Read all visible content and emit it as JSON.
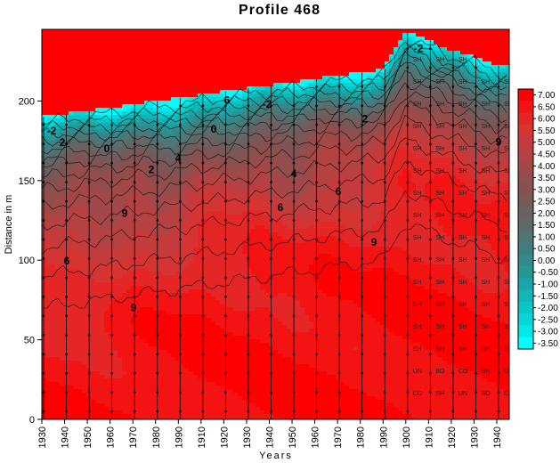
{
  "chart_data": {
    "type": "heatmap",
    "subtype": "filled-contour",
    "title": "Profile  468",
    "xlabel": "Years",
    "ylabel": "Distance in m",
    "xlim": [
      1930,
      1947
    ],
    "ylim": [
      0,
      245
    ],
    "x_ticks": [
      "1930",
      "1940",
      "1950",
      "1960",
      "1970",
      "1980",
      "1990",
      "1910",
      "1920",
      "1930",
      "1940",
      "1950",
      "1960",
      "1970",
      "1980",
      "1990",
      "1900",
      "1910",
      "1920",
      "1930",
      "1940"
    ],
    "y_ticks": [
      0,
      50,
      100,
      150,
      200
    ],
    "colorbar": {
      "levels": [
        7.0,
        6.5,
        6.0,
        5.5,
        5.0,
        4.5,
        4.0,
        3.5,
        3.0,
        2.5,
        2.0,
        1.5,
        1.0,
        0.5,
        0.0,
        -0.5,
        -1.0,
        -1.5,
        -2.0,
        -2.5,
        -3.0,
        -3.5
      ],
      "labels": [
        "7.00",
        "6.50",
        "6.00",
        "5.50",
        "5.00",
        "4.50",
        "4.00",
        "3.50",
        "3.00",
        "2.50",
        "2.00",
        "1.50",
        "1.00",
        "0.50",
        "0.00",
        "-0.50",
        "-1.00",
        "-1.50",
        "-2.00",
        "-2.50",
        "-3.00",
        "-3.50"
      ],
      "colors": [
        "#ff0000",
        "#f41313",
        "#e52626",
        "#d63333",
        "#c53b3b",
        "#b44242",
        "#a24848",
        "#924d4d",
        "#835252",
        "#765a5a",
        "#6a6262",
        "#5e6a6a",
        "#517474",
        "#437e7e",
        "#348a8a",
        "#269797",
        "#1aa6a6",
        "#10b6b6",
        "#08c6c6",
        "#03d7d7",
        "#00e8e8",
        "#00ffff"
      ]
    },
    "shoreline_distance_by_tick": [
      190,
      192,
      194,
      196,
      198,
      200,
      202,
      204,
      206,
      208,
      210,
      212,
      214,
      216,
      218,
      220,
      244,
      238,
      232,
      228,
      222
    ],
    "contour_labels": [
      "-2",
      "0",
      "2",
      "4",
      "6",
      "9"
    ],
    "survey_annotations": [
      "SH",
      "UN",
      "BO",
      "CO"
    ],
    "grid": false,
    "legend": "right"
  }
}
